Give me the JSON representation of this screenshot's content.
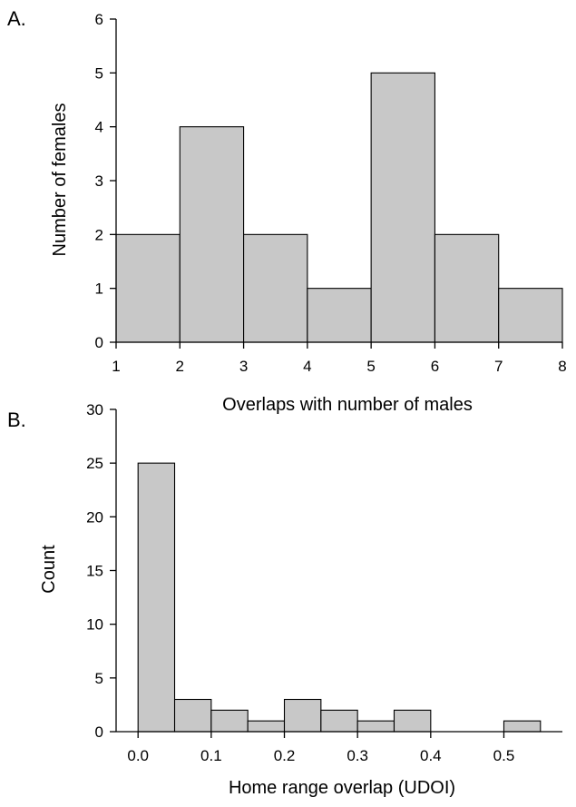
{
  "colors": {
    "bar_fill": "#c8c8c8",
    "bar_stroke": "#000000",
    "background": "#ffffff"
  },
  "chart_data": [
    {
      "type": "bar",
      "panel_label": "A.",
      "title": "",
      "xlabel": "Overlaps with number of males",
      "ylabel": "Number of females",
      "xlim": [
        1,
        8
      ],
      "ylim": [
        0,
        6
      ],
      "xticks": [
        1,
        2,
        3,
        4,
        5,
        6,
        7,
        8
      ],
      "yticks": [
        0,
        1,
        2,
        3,
        4,
        5,
        6
      ],
      "x_tick_labels": [
        "1",
        "2",
        "3",
        "4",
        "5",
        "6",
        "7",
        "8"
      ],
      "y_tick_labels": [
        "0",
        "1",
        "2",
        "3",
        "4",
        "5",
        "6"
      ],
      "bins": [
        {
          "x0": 1,
          "x1": 2,
          "value": 2
        },
        {
          "x0": 2,
          "x1": 3,
          "value": 4
        },
        {
          "x0": 3,
          "x1": 4,
          "value": 2
        },
        {
          "x0": 4,
          "x1": 5,
          "value": 1
        },
        {
          "x0": 5,
          "x1": 6,
          "value": 5
        },
        {
          "x0": 6,
          "x1": 7,
          "value": 2
        },
        {
          "x0": 7,
          "x1": 8,
          "value": 1
        }
      ],
      "grid": false,
      "legend": "none"
    },
    {
      "type": "bar",
      "panel_label": "B.",
      "title": "",
      "xlabel": "Home range overlap (UDOI)",
      "ylabel": "Count",
      "xlim": [
        -0.03,
        0.58
      ],
      "ylim": [
        0,
        30
      ],
      "xticks": [
        0.0,
        0.1,
        0.2,
        0.3,
        0.4,
        0.5
      ],
      "yticks": [
        0,
        5,
        10,
        15,
        20,
        25,
        30
      ],
      "x_tick_labels": [
        "0.0",
        "0.1",
        "0.2",
        "0.3",
        "0.4",
        "0.5"
      ],
      "y_tick_labels": [
        "0",
        "5",
        "10",
        "15",
        "20",
        "25",
        "30"
      ],
      "bins": [
        {
          "x0": 0.0,
          "x1": 0.05,
          "value": 25
        },
        {
          "x0": 0.05,
          "x1": 0.1,
          "value": 3
        },
        {
          "x0": 0.1,
          "x1": 0.15,
          "value": 2
        },
        {
          "x0": 0.15,
          "x1": 0.2,
          "value": 1
        },
        {
          "x0": 0.2,
          "x1": 0.25,
          "value": 3
        },
        {
          "x0": 0.25,
          "x1": 0.3,
          "value": 2
        },
        {
          "x0": 0.3,
          "x1": 0.35,
          "value": 1
        },
        {
          "x0": 0.35,
          "x1": 0.4,
          "value": 2
        },
        {
          "x0": 0.5,
          "x1": 0.55,
          "value": 1
        }
      ],
      "grid": false,
      "legend": "none"
    }
  ]
}
